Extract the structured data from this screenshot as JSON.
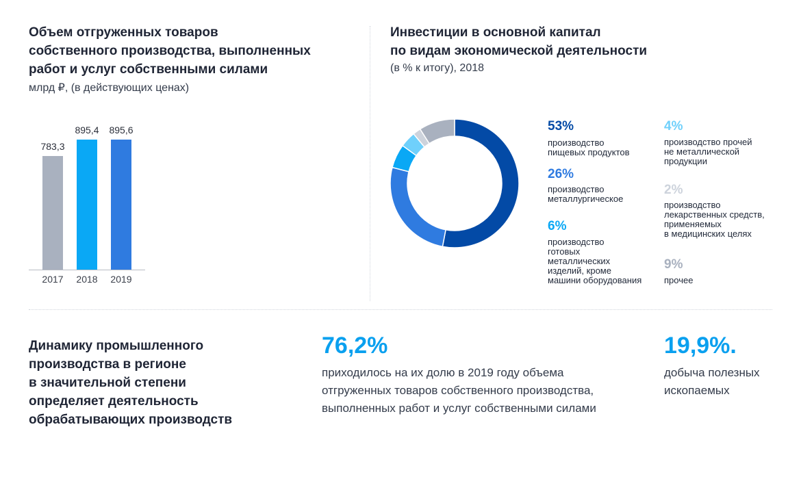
{
  "left_chart": {
    "title": "Объем отгруженных товаров\nсобственного производства, выполненных\nработ и услуг собственными силами",
    "subtitle": "млрд ₽, (в действующих ценах)"
  },
  "right_chart": {
    "title": "Инвестиции в основной капитал\nпо видам экономической деятельности",
    "subtitle": "(в % к итогу), 2018"
  },
  "chart_data": [
    {
      "type": "bar",
      "categories": [
        "2017",
        "2018",
        "2019"
      ],
      "values": [
        783.3,
        895.4,
        895.6
      ],
      "value_labels": [
        "783,3",
        "895,4",
        "895,6"
      ],
      "colors": [
        "#a9b1bf",
        "#0aa8f5",
        "#2f7be0"
      ],
      "title": "Объем отгруженных товаров собственного производства, выполненных работ и услуг собственными силами",
      "subtitle": "млрд ₽, (в действующих ценах)",
      "xlabel": "",
      "ylabel": ""
    },
    {
      "type": "pie",
      "title": "Инвестиции в основной капитал по видам экономической деятельности",
      "subtitle": "(в % к итогу), 2018",
      "slices": [
        {
          "label": "производство пищевых продуктов",
          "value": 53,
          "pct": "53%",
          "color": "#034aa6"
        },
        {
          "label": "производство металлургическое",
          "value": 26,
          "pct": "26%",
          "color": "#2f7be0"
        },
        {
          "label": "производство готовых металлических изделий, кроме машини оборудования",
          "value": 6,
          "pct": "6%",
          "color": "#0aa8f5"
        },
        {
          "label": "производство прочей не металлической продукции",
          "value": 4,
          "pct": "4%",
          "color": "#6fd0fb"
        },
        {
          "label": "производство лекарственных средств, применяемых в медицинских целях",
          "value": 2,
          "pct": "2%",
          "color": "#cdd3dc"
        },
        {
          "label": "прочее",
          "value": 9,
          "pct": "9%",
          "color": "#a9b1bf"
        }
      ]
    }
  ],
  "legend": {
    "s0": {
      "pct": "53%",
      "text": "производство\nпищевых продуктов"
    },
    "s1": {
      "pct": "26%",
      "text": "производство\nметаллургическое"
    },
    "s2": {
      "pct": "6%",
      "text": "производство\nготовых\nметаллических\nизделий, кроме\nмашини оборудования"
    },
    "s3": {
      "pct": "4%",
      "text": "производство прочей\nне металлической\nпродукции"
    },
    "s4": {
      "pct": "2%",
      "text": "производство\nлекарственных средств,\nприменяемых\nв медицинских целях"
    },
    "s5": {
      "pct": "9%",
      "text": "прочее"
    }
  },
  "bottom": {
    "title": "Динамику промышленного\nпроизводства в регионе\nв значительной степени\nопределяет деятельность\nобрабатывающих производств",
    "stat1_value": "76,2%",
    "stat1_text": "приходилось на их долю в 2019 году объема\nотгруженных товаров собственного производства,\nвыполненных работ и услуг собственными силами",
    "stat2_value": "19,9%.",
    "stat2_text": "добыча полезных\nископаемых"
  }
}
